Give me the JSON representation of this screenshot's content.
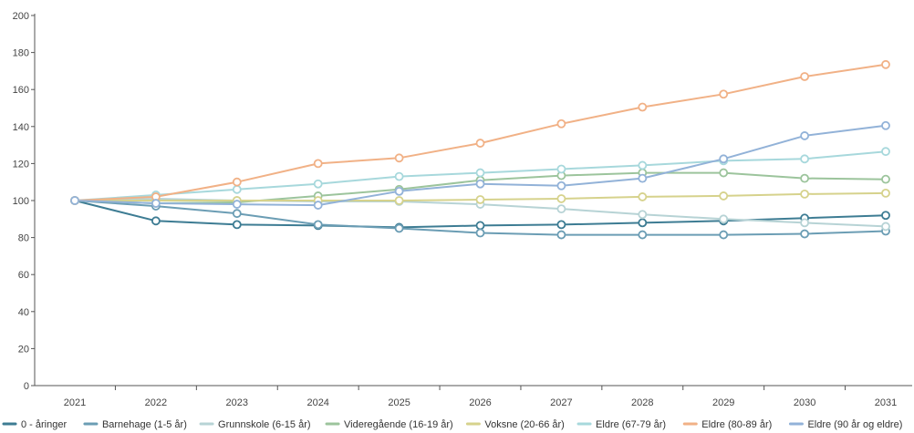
{
  "chart_data": {
    "type": "line",
    "title": "",
    "xlabel": "",
    "ylabel": "",
    "ylim": [
      0,
      200
    ],
    "yticks": [
      0,
      20,
      40,
      60,
      80,
      100,
      120,
      140,
      160,
      180,
      200
    ],
    "grid": false,
    "legend_position": "bottom",
    "categories": [
      "2021",
      "2022",
      "2023",
      "2024",
      "2025",
      "2026",
      "2027",
      "2028",
      "2029",
      "2030",
      "2031"
    ],
    "series": [
      {
        "name": "0 - åringer",
        "color": "#3d7c93",
        "values": [
          100,
          89,
          87,
          86.5,
          85.5,
          86.5,
          87,
          88,
          89,
          90.5,
          92
        ]
      },
      {
        "name": "Barnehage (1-5 år)",
        "color": "#6b9db4",
        "values": [
          100,
          97,
          93,
          87,
          85,
          82.5,
          81.5,
          81.5,
          81.5,
          82,
          83.5
        ]
      },
      {
        "name": "Grunnskole (6-15 år)",
        "color": "#b7d3d5",
        "values": [
          100,
          101,
          100,
          99.5,
          99.5,
          98,
          95.5,
          92.5,
          90,
          88,
          86
        ]
      },
      {
        "name": "Videregående (16-19 år)",
        "color": "#9cc49c",
        "values": [
          100,
          98.5,
          99,
          102.5,
          106,
          111,
          113.5,
          115,
          115,
          112,
          111.5
        ]
      },
      {
        "name": "Voksne (20-66 år)",
        "color": "#d6d28c",
        "values": [
          100,
          100,
          100,
          100,
          100,
          100.5,
          101,
          102,
          102.5,
          103.5,
          104
        ]
      },
      {
        "name": "Eldre (67-79 år)",
        "color": "#a7d8dc",
        "values": [
          100,
          103,
          106,
          109,
          113,
          115,
          117,
          119,
          121.5,
          122.5,
          126.5
        ]
      },
      {
        "name": "Eldre (80-89 år)",
        "color": "#f1b186",
        "values": [
          100,
          102,
          110,
          120,
          123,
          131,
          141.5,
          150.5,
          157.5,
          167,
          173.5
        ]
      },
      {
        "name": "Eldre (90 år og eldre)",
        "color": "#92b2d8",
        "values": [
          100,
          98.5,
          98,
          97.5,
          105,
          109,
          108,
          112,
          122.5,
          135,
          140.5
        ]
      }
    ]
  }
}
